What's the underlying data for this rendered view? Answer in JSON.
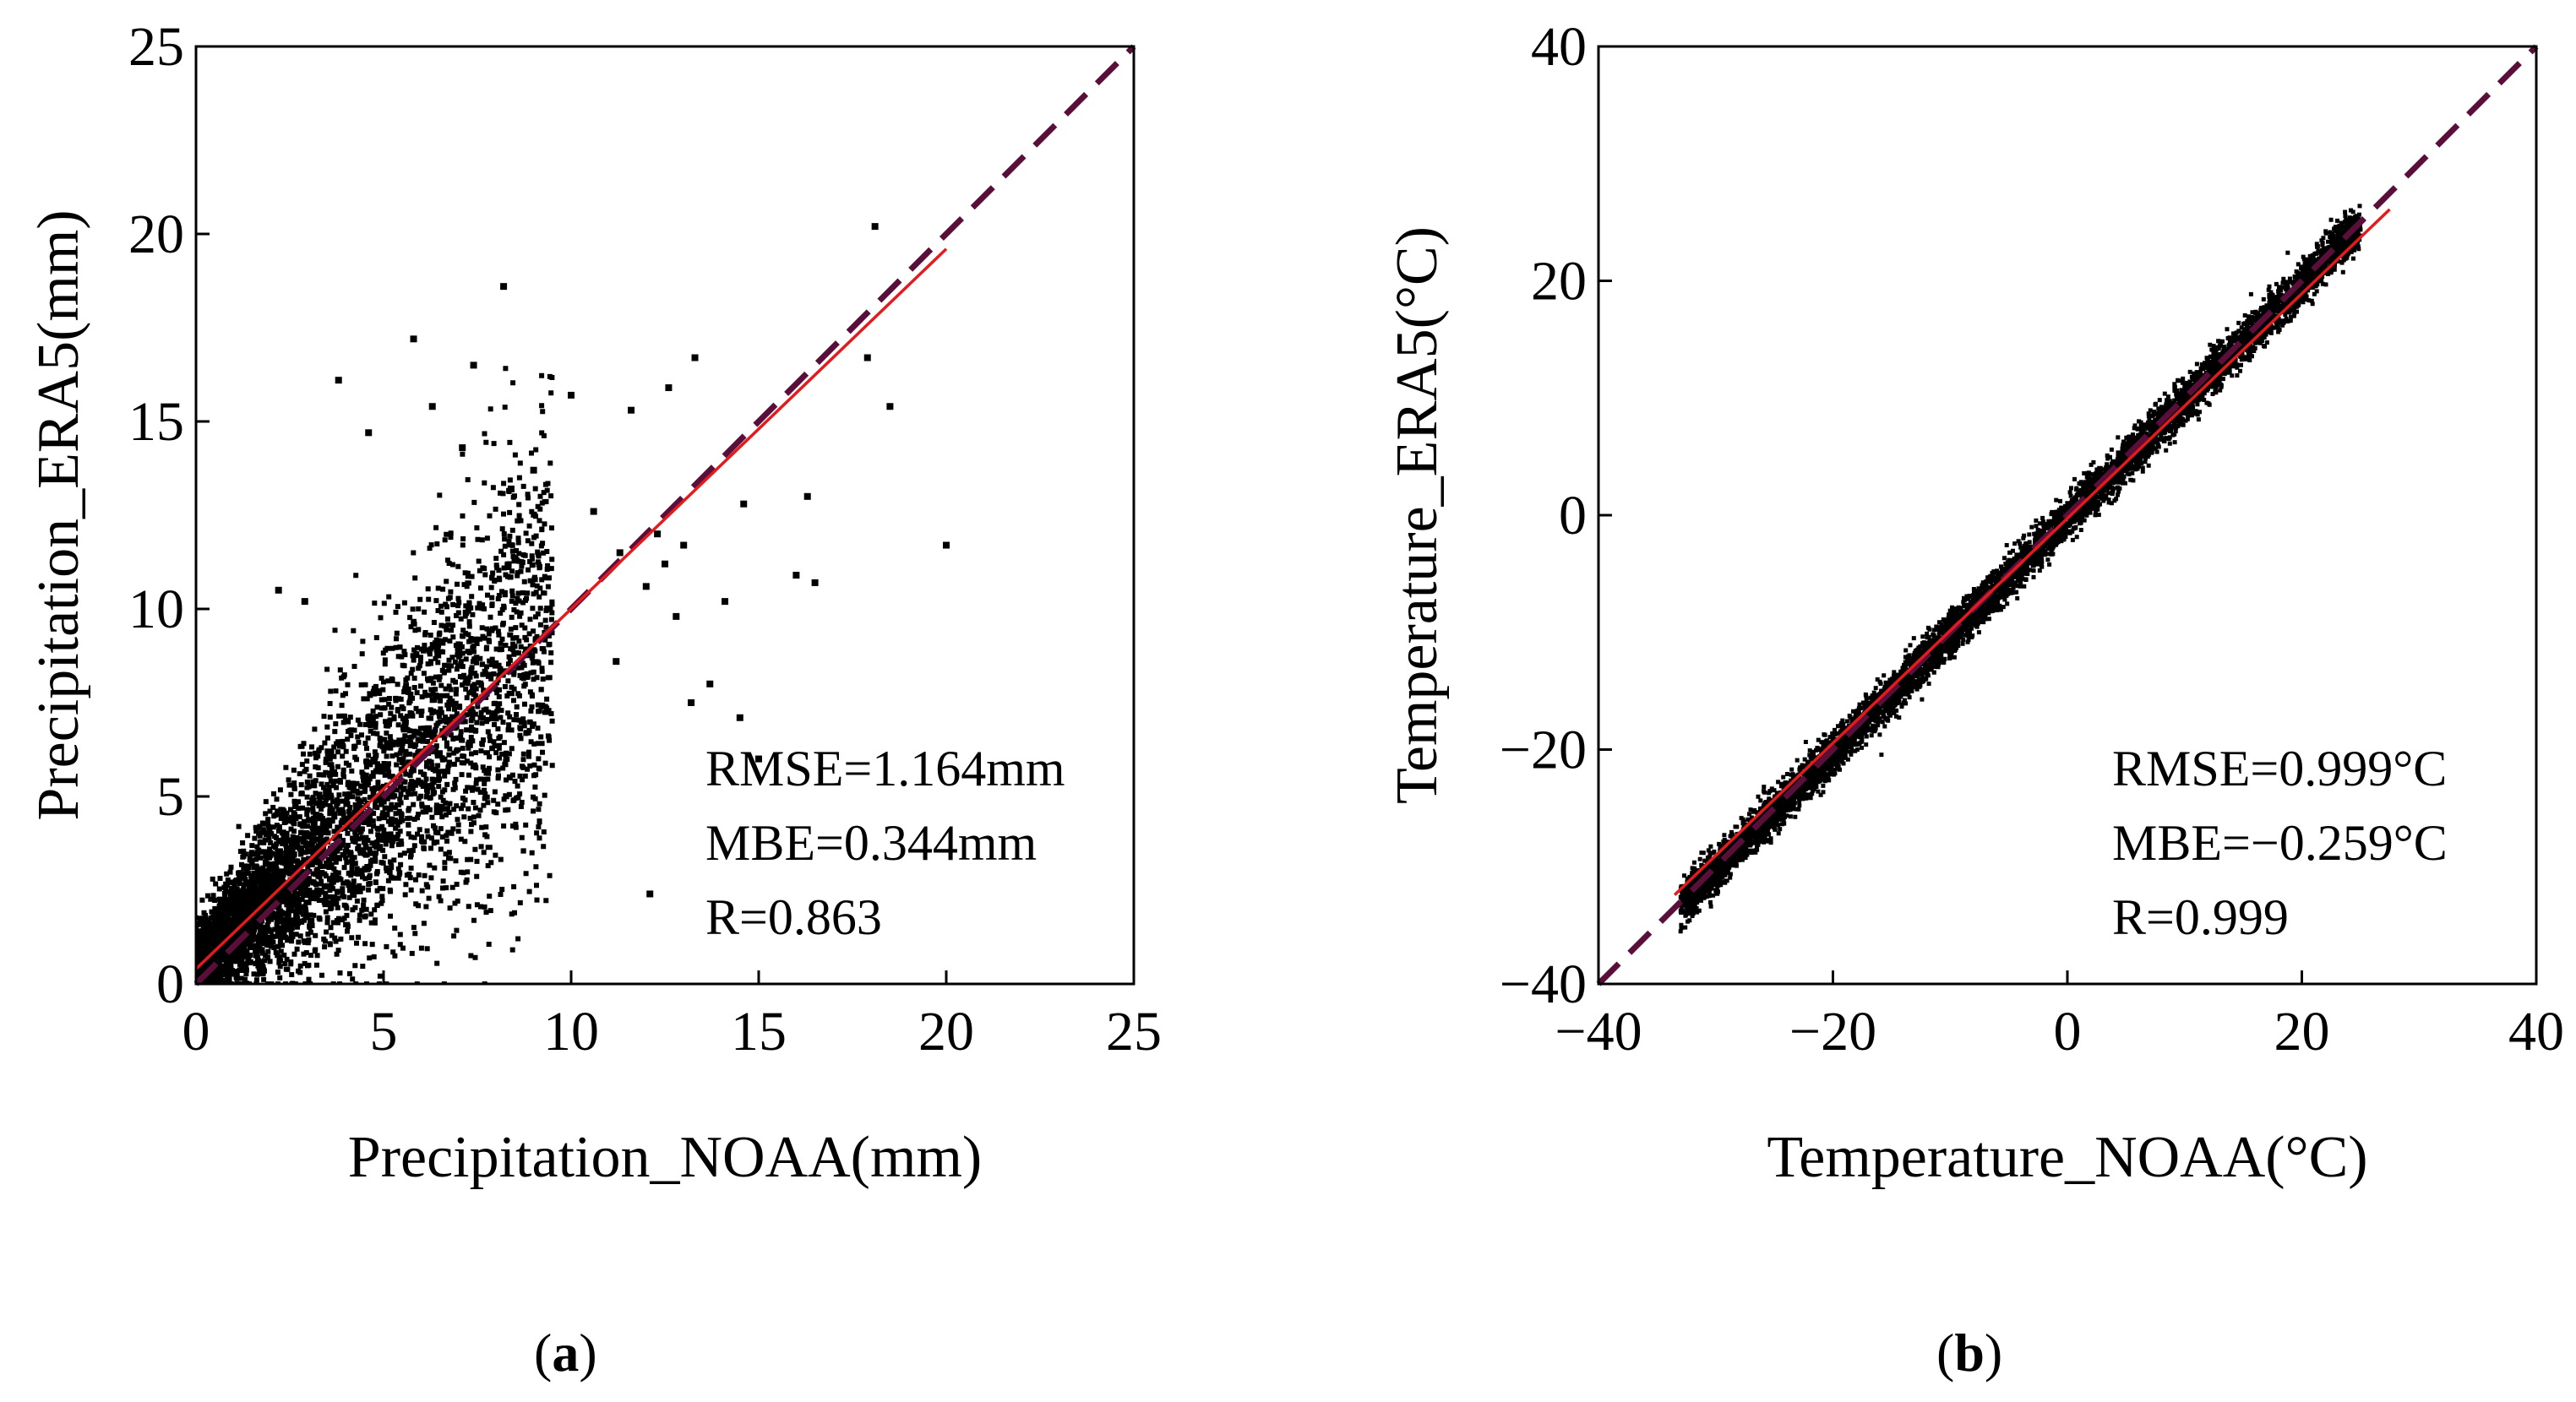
{
  "chart_data": [
    {
      "type": "scatter",
      "xlabel": "Precipitation_NOAA(mm)",
      "ylabel": "Precipitation_ERA5(mm)",
      "xlim": [
        0,
        25
      ],
      "ylim": [
        0,
        25
      ],
      "xticks": [
        "0",
        "5",
        "10",
        "15",
        "20",
        "25"
      ],
      "yticks": [
        "0",
        "5",
        "10",
        "15",
        "20",
        "25"
      ],
      "stats": [
        "RMSE=1.164mm",
        "MBE=0.344mm",
        "R=0.863"
      ],
      "fit_line": {
        "x": [
          0,
          20
        ],
        "y": [
          0.4,
          19.6
        ],
        "color": "#e41a1c"
      },
      "identity_line": {
        "x": [
          0,
          25
        ],
        "y": [
          0,
          25
        ],
        "color": "#5a0f3a",
        "style": "dashed"
      },
      "outliers": [
        [
          18.1,
          20.2
        ],
        [
          8.2,
          18.6
        ],
        [
          5.8,
          17.2
        ],
        [
          7.4,
          16.5
        ],
        [
          3.8,
          16.1
        ],
        [
          13.3,
          16.7
        ],
        [
          17.9,
          16.7
        ],
        [
          18.5,
          15.4
        ],
        [
          6.3,
          15.4
        ],
        [
          10.0,
          15.7
        ],
        [
          11.6,
          15.3
        ],
        [
          12.6,
          15.9
        ],
        [
          14.6,
          12.8
        ],
        [
          16.3,
          13.0
        ],
        [
          20.0,
          11.7
        ],
        [
          16.0,
          10.9
        ],
        [
          14.1,
          10.2
        ],
        [
          12.1,
          2.4
        ],
        [
          15.0,
          6.0
        ],
        [
          13.7,
          8.0
        ],
        [
          14.5,
          7.1
        ],
        [
          12.8,
          9.8
        ],
        [
          11.2,
          8.6
        ],
        [
          13.2,
          7.5
        ],
        [
          12.0,
          10.6
        ],
        [
          16.5,
          10.7
        ],
        [
          4.6,
          14.7
        ],
        [
          7.1,
          14.3
        ],
        [
          9.0,
          13.7
        ],
        [
          11.3,
          11.5
        ],
        [
          12.5,
          11.2
        ],
        [
          12.3,
          12.0
        ],
        [
          13.0,
          11.7
        ],
        [
          8.4,
          13.2
        ],
        [
          10.6,
          12.6
        ],
        [
          2.2,
          10.5
        ],
        [
          2.9,
          10.2
        ]
      ],
      "panel": "a"
    },
    {
      "type": "scatter",
      "xlabel": "Temperature_NOAA(°C)",
      "ylabel": "Temperature_ERA5(°C)",
      "xlim": [
        -40,
        40
      ],
      "ylim": [
        -40,
        40
      ],
      "xticks": [
        "−40",
        "−20",
        "0",
        "20",
        "40"
      ],
      "yticks": [
        "−40",
        "−20",
        "0",
        "20",
        "40"
      ],
      "stats": [
        "RMSE=0.999°C",
        "MBE=−0.259°C",
        "R=0.999"
      ],
      "fit_line": {
        "x": [
          -33.5,
          27.5
        ],
        "y": [
          -32.4,
          26.1
        ],
        "color": "#e41a1c"
      },
      "identity_line": {
        "x": [
          -40,
          40
        ],
        "y": [
          -40,
          40
        ],
        "color": "#5a0f3a",
        "style": "dashed"
      },
      "point_range": {
        "x": [
          -33,
          25
        ]
      },
      "panel": "b"
    }
  ],
  "panel_labels": {
    "a": "a",
    "b": "b"
  }
}
